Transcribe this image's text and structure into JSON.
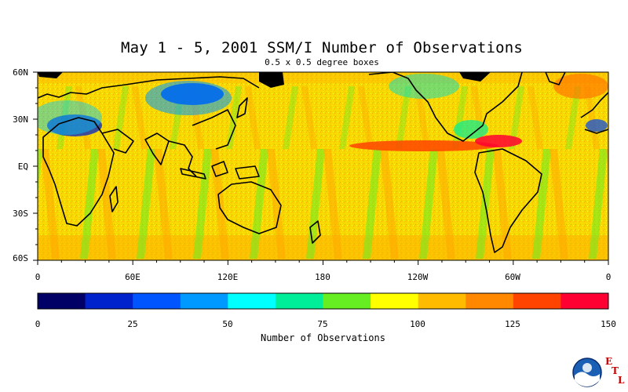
{
  "title": "May 1 - 5, 2001 SSM/I Number of Observations",
  "subtitle": "0.5 x 0.5 degree boxes",
  "lat_labels": [
    "60N",
    "30N",
    "EQ",
    "30S",
    "60S"
  ],
  "lon_labels": [
    "0",
    "60E",
    "120E",
    "180",
    "120W",
    "60W",
    "0"
  ],
  "colorbar": {
    "label": "Number of Observations",
    "ticks": [
      "0",
      "25",
      "50",
      "75",
      "100",
      "125",
      "150"
    ],
    "colors": [
      "#000066",
      "#0022cc",
      "#0055ff",
      "#0099ff",
      "#00ffff",
      "#00ee99",
      "#66ee22",
      "#ffff00",
      "#ffbb00",
      "#ff8800",
      "#ff4400",
      "#ff0033"
    ],
    "range": [
      0,
      150
    ]
  },
  "map": {
    "projection": "equirectangular",
    "lon_range": [
      0,
      360
    ],
    "lat_range": [
      -60,
      60
    ],
    "base_color": "#f4d000",
    "coastline_color": "#000000"
  },
  "logo": {
    "org": "NOAA",
    "letters": [
      "E",
      "T",
      "L"
    ]
  }
}
